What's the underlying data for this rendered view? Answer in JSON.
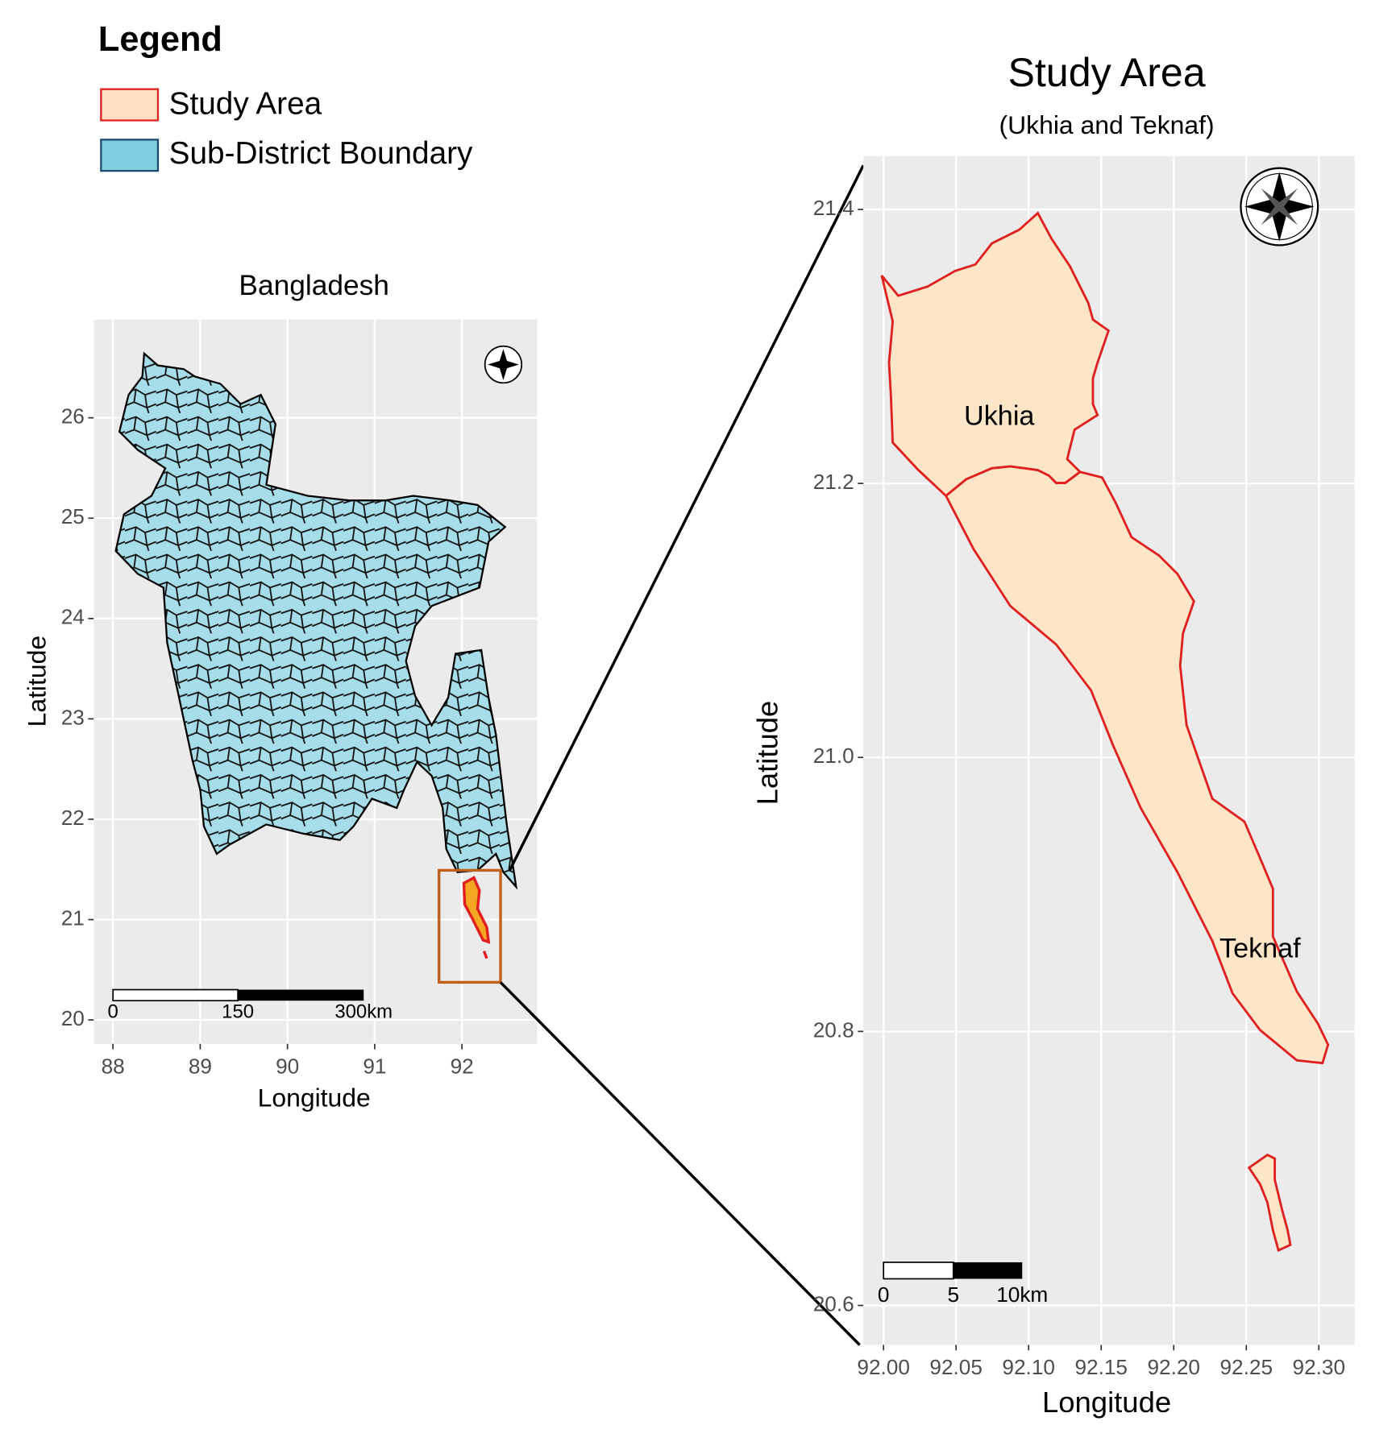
{
  "legend": {
    "title": "Legend",
    "items": [
      "Study Area",
      "Sub-District Boundary"
    ]
  },
  "left_map": {
    "title": "Bangladesh",
    "xlabel": "Longitude",
    "ylabel": "Latitude",
    "xticks": [
      88,
      89,
      90,
      91,
      92
    ],
    "yticks": [
      20,
      21,
      22,
      23,
      24,
      25,
      26
    ],
    "scale_bar": [
      "0",
      "150",
      "300km"
    ]
  },
  "right_map": {
    "title": "Study Area",
    "subtitle": "(Ukhia and Teknaf)",
    "xlabel": "Longitude",
    "ylabel": "Latitude",
    "xticks": [
      {
        "value": 92,
        "label": "92.00"
      },
      {
        "value": 92.05,
        "label": "92.05"
      },
      {
        "value": 92.1,
        "label": "92.10"
      },
      {
        "value": 92.15,
        "label": "92.15"
      },
      {
        "value": 92.2,
        "label": "92.20"
      },
      {
        "value": 92.25,
        "label": "92.25"
      },
      {
        "value": 92.3,
        "label": "92.30"
      }
    ],
    "yticks": [
      20.6,
      20.8,
      {
        "value": 21,
        "label": "21.0"
      },
      21.2,
      21.4
    ],
    "labels": [
      "Ukhia",
      "Teknaf"
    ],
    "scale_bar": [
      "0",
      "5",
      "10km"
    ]
  }
}
